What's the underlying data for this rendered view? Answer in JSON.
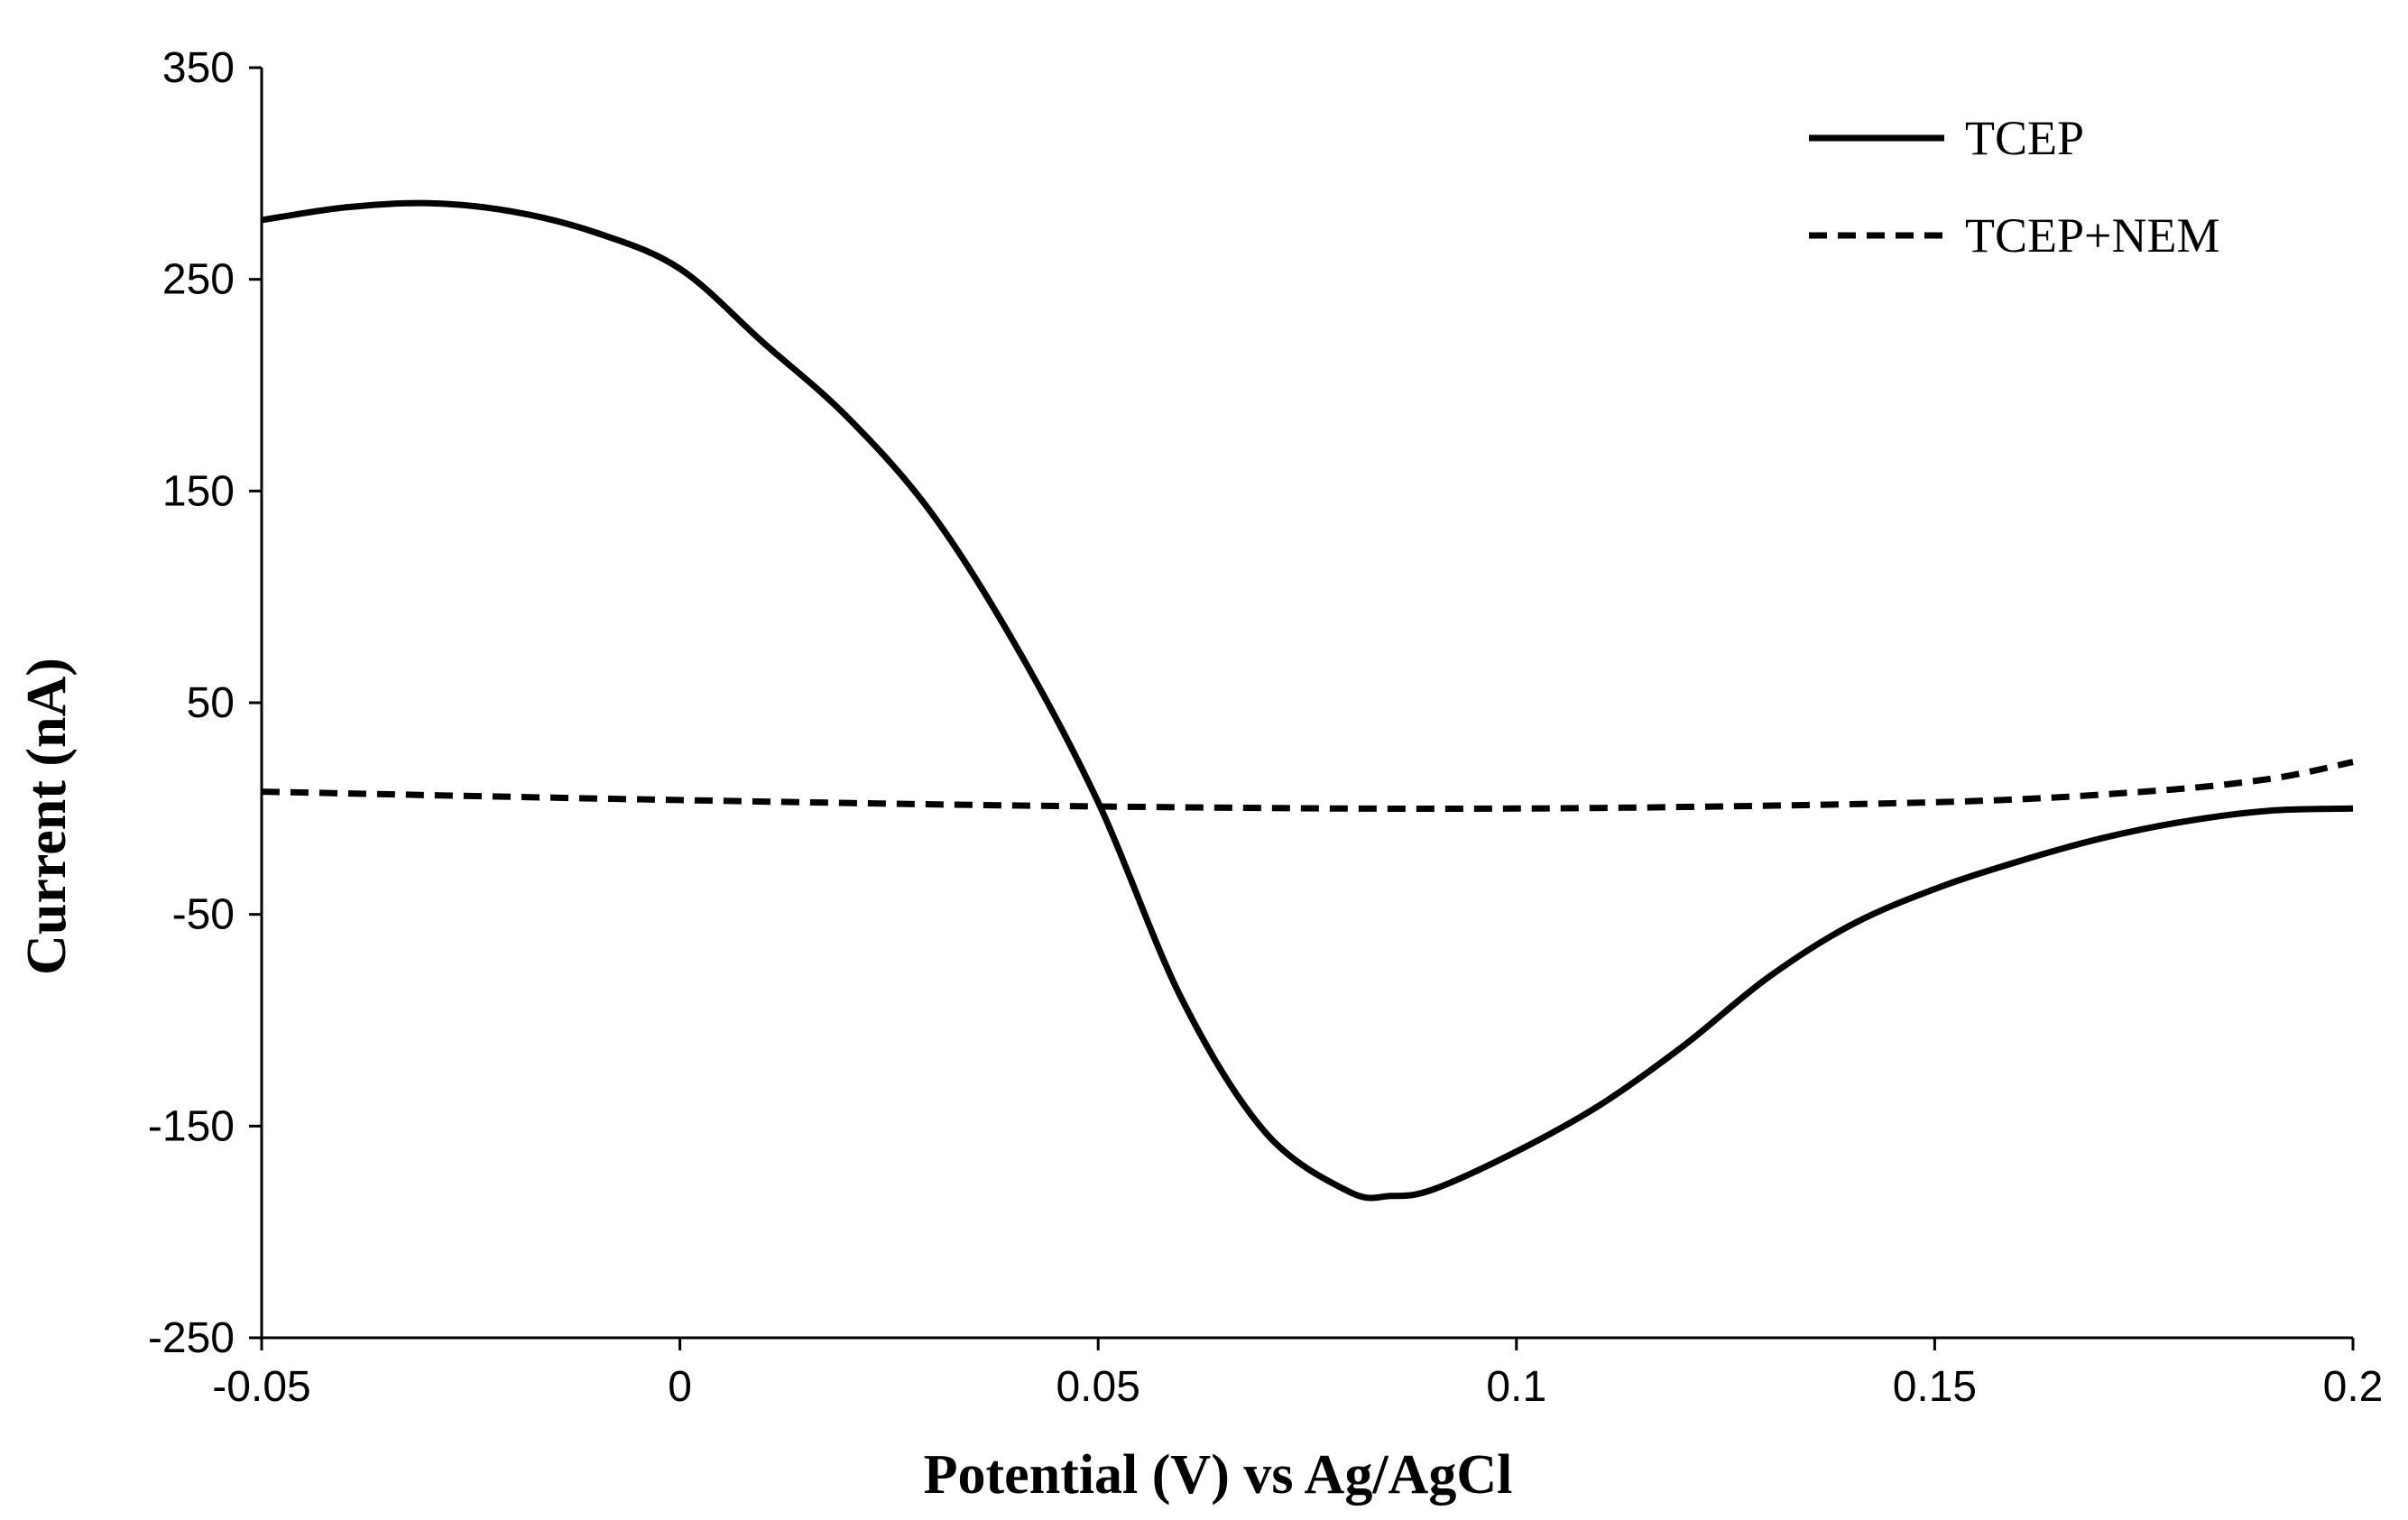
{
  "chart_data": {
    "type": "line",
    "title": "",
    "xlabel": "Potential (V) vs Ag/AgCl",
    "ylabel": "Current (nA)",
    "xlim": [
      -0.05,
      0.2
    ],
    "ylim": [
      -250,
      350
    ],
    "xticks": [
      -0.05,
      0,
      0.05,
      0.1,
      0.15,
      0.2
    ],
    "xtick_labels": [
      "-0.05",
      "0",
      "0.05",
      "0.1",
      "0.15",
      "0.2"
    ],
    "yticks": [
      350,
      250,
      150,
      50,
      -50,
      -150,
      -250
    ],
    "ytick_labels": [
      "350",
      "250",
      "150",
      "50",
      "-50",
      "-150",
      "-250"
    ],
    "grid": false,
    "legend_position": "top-right",
    "series": [
      {
        "name": "TCEP",
        "style": "solid",
        "color": "#000000",
        "x": [
          -0.05,
          -0.04,
          -0.03,
          -0.02,
          -0.01,
          0.0,
          0.01,
          0.02,
          0.03,
          0.04,
          0.05,
          0.06,
          0.07,
          0.08,
          0.085,
          0.09,
          0.1,
          0.11,
          0.12,
          0.13,
          0.14,
          0.15,
          0.16,
          0.17,
          0.18,
          0.19,
          0.2
        ],
        "y": [
          278,
          284,
          286,
          282,
          272,
          255,
          220,
          185,
          140,
          78,
          3,
          -90,
          -153,
          -181,
          -183,
          -180,
          -162,
          -140,
          -112,
          -80,
          -55,
          -38,
          -25,
          -14,
          -6,
          -1,
          0
        ]
      },
      {
        "name": "TCEP+NEM",
        "style": "dashed",
        "color": "#000000",
        "x": [
          -0.05,
          0.0,
          0.05,
          0.1,
          0.15,
          0.175,
          0.19,
          0.2
        ],
        "y": [
          8,
          4,
          1,
          0,
          3,
          8,
          14,
          22
        ]
      }
    ]
  }
}
